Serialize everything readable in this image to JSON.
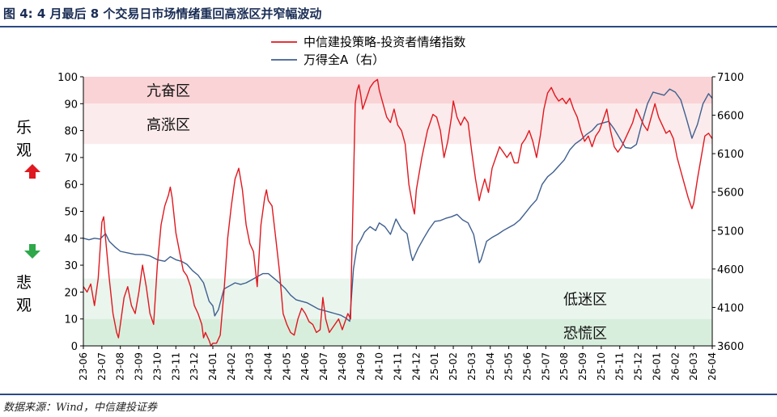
{
  "title": "图 4: 4 月最后 8 个交易日市场情绪重回高涨区并窄幅波动",
  "source": "数据来源：Wind，中信建投证券",
  "side_labels": {
    "upper": [
      "乐",
      "观"
    ],
    "lower": [
      "悲",
      "观"
    ]
  },
  "colors": {
    "sentiment": "#e0181f",
    "index": "#3e5f8f",
    "band_hot": "#f9d3d6",
    "band_high": "#fcebec",
    "band_low": "#eaf5ee",
    "band_panic": "#d8eedd",
    "up_arrow": "#e0181f",
    "down_arrow": "#2ea84a",
    "header": "#1a2d55"
  },
  "chart_data": {
    "type": "line",
    "title": "",
    "xlabel": "",
    "ylabel": "",
    "y_left": {
      "min": 0,
      "max": 100,
      "ticks": [
        0,
        10,
        20,
        30,
        40,
        50,
        60,
        70,
        80,
        90,
        100
      ]
    },
    "y_right": {
      "min": 3600,
      "max": 7100,
      "ticks": [
        3600,
        4100,
        4600,
        5100,
        5600,
        6100,
        6600,
        7100
      ]
    },
    "x_ticks": [
      "23-06",
      "23-07",
      "23-08",
      "23-09",
      "23-10",
      "23-11",
      "23-12",
      "24-01",
      "24-02",
      "24-03",
      "24-04",
      "24-05",
      "24-06",
      "24-07",
      "24-08",
      "24-09",
      "24-10",
      "24-11",
      "24-12",
      "25-01",
      "25-02",
      "25-03",
      "25-04",
      "25-05",
      "25-06",
      "25-07",
      "25-08",
      "25-09",
      "25-10",
      "25-11",
      "25-12",
      "26-01",
      "26-02",
      "26-03",
      "26-04"
    ],
    "bands": [
      {
        "label": "亢奋区",
        "from": 90,
        "to": 100,
        "color": "band_hot"
      },
      {
        "label": "高涨区",
        "from": 75,
        "to": 90,
        "color": "band_high"
      },
      {
        "label": "低迷区",
        "from": 10,
        "to": 25,
        "color": "band_low"
      },
      {
        "label": "恐慌区",
        "from": 0,
        "to": 10,
        "color": "band_panic"
      }
    ],
    "legend": {
      "position": "top-center"
    },
    "series": [
      {
        "name": "中信建投策略-投资者情绪指数",
        "axis": "left",
        "color": "sentiment",
        "points": [
          [
            0.0,
            22
          ],
          [
            0.2,
            20
          ],
          [
            0.4,
            23
          ],
          [
            0.6,
            15
          ],
          [
            0.8,
            25
          ],
          [
            1.0,
            46
          ],
          [
            1.1,
            48
          ],
          [
            1.2,
            40
          ],
          [
            1.4,
            25
          ],
          [
            1.6,
            12
          ],
          [
            1.8,
            5
          ],
          [
            1.9,
            3
          ],
          [
            2.0,
            8
          ],
          [
            2.2,
            18
          ],
          [
            2.4,
            22
          ],
          [
            2.6,
            15
          ],
          [
            2.8,
            12
          ],
          [
            3.0,
            20
          ],
          [
            3.2,
            30
          ],
          [
            3.4,
            22
          ],
          [
            3.6,
            12
          ],
          [
            3.8,
            8
          ],
          [
            4.0,
            30
          ],
          [
            4.2,
            45
          ],
          [
            4.4,
            52
          ],
          [
            4.6,
            56
          ],
          [
            4.7,
            59
          ],
          [
            4.8,
            55
          ],
          [
            5.0,
            42
          ],
          [
            5.2,
            35
          ],
          [
            5.4,
            28
          ],
          [
            5.6,
            26
          ],
          [
            5.8,
            22
          ],
          [
            6.0,
            15
          ],
          [
            6.2,
            12
          ],
          [
            6.4,
            8
          ],
          [
            6.5,
            3
          ],
          [
            6.6,
            5
          ],
          [
            6.8,
            2
          ],
          [
            6.9,
            0
          ],
          [
            7.0,
            1
          ],
          [
            7.2,
            1
          ],
          [
            7.4,
            4
          ],
          [
            7.6,
            20
          ],
          [
            7.8,
            40
          ],
          [
            8.0,
            52
          ],
          [
            8.2,
            62
          ],
          [
            8.4,
            66
          ],
          [
            8.6,
            58
          ],
          [
            8.8,
            45
          ],
          [
            9.0,
            38
          ],
          [
            9.2,
            35
          ],
          [
            9.4,
            22
          ],
          [
            9.6,
            45
          ],
          [
            9.8,
            55
          ],
          [
            9.9,
            58
          ],
          [
            10.0,
            54
          ],
          [
            10.2,
            52
          ],
          [
            10.4,
            40
          ],
          [
            10.6,
            28
          ],
          [
            10.8,
            12
          ],
          [
            11.0,
            8
          ],
          [
            11.2,
            5
          ],
          [
            11.4,
            4
          ],
          [
            11.6,
            10
          ],
          [
            11.8,
            14
          ],
          [
            12.0,
            12
          ],
          [
            12.2,
            9
          ],
          [
            12.4,
            8
          ],
          [
            12.6,
            5
          ],
          [
            12.8,
            6
          ],
          [
            12.95,
            18
          ],
          [
            13.1,
            10
          ],
          [
            13.3,
            5
          ],
          [
            13.6,
            8
          ],
          [
            13.8,
            10
          ],
          [
            14.0,
            6
          ],
          [
            14.3,
            12
          ],
          [
            14.45,
            10
          ],
          [
            14.5,
            30
          ],
          [
            14.6,
            60
          ],
          [
            14.7,
            90
          ],
          [
            14.8,
            95
          ],
          [
            14.9,
            97
          ],
          [
            15.0,
            93
          ],
          [
            15.1,
            88
          ],
          [
            15.3,
            92
          ],
          [
            15.5,
            96
          ],
          [
            15.7,
            98
          ],
          [
            15.9,
            99
          ],
          [
            16.0,
            95
          ],
          [
            16.2,
            90
          ],
          [
            16.4,
            85
          ],
          [
            16.6,
            83
          ],
          [
            16.8,
            88
          ],
          [
            17.0,
            82
          ],
          [
            17.2,
            80
          ],
          [
            17.4,
            75
          ],
          [
            17.6,
            60
          ],
          [
            17.8,
            52
          ],
          [
            17.9,
            49
          ],
          [
            18.0,
            58
          ],
          [
            18.3,
            70
          ],
          [
            18.6,
            80
          ],
          [
            18.9,
            86
          ],
          [
            19.1,
            85
          ],
          [
            19.3,
            80
          ],
          [
            19.5,
            70
          ],
          [
            19.7,
            76
          ],
          [
            19.9,
            85
          ],
          [
            20.0,
            91
          ],
          [
            20.2,
            85
          ],
          [
            20.4,
            82
          ],
          [
            20.6,
            85
          ],
          [
            20.8,
            83
          ],
          [
            21.0,
            72
          ],
          [
            21.2,
            62
          ],
          [
            21.4,
            54
          ],
          [
            21.5,
            57
          ],
          [
            21.7,
            62
          ],
          [
            21.9,
            57
          ],
          [
            22.1,
            66
          ],
          [
            22.3,
            70
          ],
          [
            22.5,
            74
          ],
          [
            22.7,
            72
          ],
          [
            22.9,
            70
          ],
          [
            23.1,
            72
          ],
          [
            23.3,
            68
          ],
          [
            23.5,
            68
          ],
          [
            23.7,
            75
          ],
          [
            23.9,
            77
          ],
          [
            24.1,
            80
          ],
          [
            24.3,
            76
          ],
          [
            24.5,
            70
          ],
          [
            24.7,
            78
          ],
          [
            24.9,
            88
          ],
          [
            25.1,
            94
          ],
          [
            25.3,
            96
          ],
          [
            25.5,
            93
          ],
          [
            25.7,
            91
          ],
          [
            25.9,
            92
          ],
          [
            26.1,
            90
          ],
          [
            26.3,
            92
          ],
          [
            26.5,
            88
          ],
          [
            26.7,
            85
          ],
          [
            26.9,
            80
          ],
          [
            27.1,
            76
          ],
          [
            27.3,
            78
          ],
          [
            27.5,
            74
          ],
          [
            27.7,
            78
          ],
          [
            27.9,
            80
          ],
          [
            28.1,
            84
          ],
          [
            28.3,
            88
          ],
          [
            28.5,
            80
          ],
          [
            28.7,
            74
          ],
          [
            28.9,
            72
          ],
          [
            29.1,
            74
          ],
          [
            29.3,
            77
          ],
          [
            29.5,
            80
          ],
          [
            29.7,
            83
          ],
          [
            29.9,
            88
          ],
          [
            30.1,
            85
          ],
          [
            30.3,
            82
          ],
          [
            30.5,
            80
          ],
          [
            30.7,
            85
          ],
          [
            30.9,
            90
          ],
          [
            31.1,
            85
          ],
          [
            31.3,
            82
          ],
          [
            31.5,
            79
          ],
          [
            31.7,
            80
          ],
          [
            31.9,
            77
          ],
          [
            32.1,
            70
          ],
          [
            32.3,
            65
          ],
          [
            32.5,
            60
          ],
          [
            32.7,
            55
          ],
          [
            32.9,
            51
          ],
          [
            33.0,
            53
          ],
          [
            33.2,
            62
          ],
          [
            33.4,
            70
          ],
          [
            33.6,
            78
          ],
          [
            33.8,
            79
          ],
          [
            34.0,
            77
          ]
        ]
      },
      {
        "name": "万得全A（右）",
        "axis": "right",
        "color": "index",
        "points": [
          [
            0.0,
            5000
          ],
          [
            0.3,
            4980
          ],
          [
            0.6,
            5000
          ],
          [
            0.9,
            4990
          ],
          [
            1.2,
            5060
          ],
          [
            1.4,
            4960
          ],
          [
            1.7,
            4890
          ],
          [
            2.0,
            4830
          ],
          [
            2.4,
            4810
          ],
          [
            2.8,
            4790
          ],
          [
            3.2,
            4790
          ],
          [
            3.6,
            4770
          ],
          [
            4.0,
            4720
          ],
          [
            4.4,
            4700
          ],
          [
            4.7,
            4760
          ],
          [
            5.0,
            4720
          ],
          [
            5.3,
            4700
          ],
          [
            5.6,
            4660
          ],
          [
            5.9,
            4580
          ],
          [
            6.2,
            4520
          ],
          [
            6.5,
            4420
          ],
          [
            6.8,
            4180
          ],
          [
            7.0,
            4120
          ],
          [
            7.1,
            3990
          ],
          [
            7.3,
            4070
          ],
          [
            7.6,
            4340
          ],
          [
            7.9,
            4380
          ],
          [
            8.2,
            4420
          ],
          [
            8.5,
            4400
          ],
          [
            8.8,
            4420
          ],
          [
            9.1,
            4460
          ],
          [
            9.4,
            4500
          ],
          [
            9.7,
            4540
          ],
          [
            10.0,
            4540
          ],
          [
            10.3,
            4480
          ],
          [
            10.6,
            4420
          ],
          [
            10.9,
            4350
          ],
          [
            11.2,
            4260
          ],
          [
            11.5,
            4200
          ],
          [
            11.8,
            4180
          ],
          [
            12.1,
            4160
          ],
          [
            12.4,
            4120
          ],
          [
            12.7,
            4080
          ],
          [
            13.0,
            4060
          ],
          [
            13.3,
            4040
          ],
          [
            13.6,
            4020
          ],
          [
            13.9,
            4000
          ],
          [
            14.2,
            3960
          ],
          [
            14.4,
            3920
          ],
          [
            14.6,
            4600
          ],
          [
            14.8,
            4900
          ],
          [
            15.0,
            4980
          ],
          [
            15.2,
            5080
          ],
          [
            15.5,
            5150
          ],
          [
            15.8,
            5100
          ],
          [
            16.0,
            5200
          ],
          [
            16.3,
            5150
          ],
          [
            16.6,
            5050
          ],
          [
            16.9,
            5250
          ],
          [
            17.2,
            5120
          ],
          [
            17.5,
            5060
          ],
          [
            17.7,
            4800
          ],
          [
            17.8,
            4710
          ],
          [
            18.1,
            4870
          ],
          [
            18.4,
            5000
          ],
          [
            18.7,
            5120
          ],
          [
            19.0,
            5220
          ],
          [
            19.3,
            5230
          ],
          [
            19.6,
            5260
          ],
          [
            19.9,
            5280
          ],
          [
            20.2,
            5310
          ],
          [
            20.5,
            5240
          ],
          [
            20.8,
            5200
          ],
          [
            21.1,
            5050
          ],
          [
            21.4,
            4680
          ],
          [
            21.5,
            4720
          ],
          [
            21.8,
            4960
          ],
          [
            22.1,
            5010
          ],
          [
            22.4,
            5050
          ],
          [
            22.7,
            5100
          ],
          [
            23.0,
            5140
          ],
          [
            23.3,
            5180
          ],
          [
            23.6,
            5240
          ],
          [
            23.9,
            5330
          ],
          [
            24.2,
            5420
          ],
          [
            24.5,
            5500
          ],
          [
            24.8,
            5700
          ],
          [
            25.1,
            5800
          ],
          [
            25.4,
            5860
          ],
          [
            25.7,
            5940
          ],
          [
            26.0,
            6020
          ],
          [
            26.3,
            6150
          ],
          [
            26.6,
            6230
          ],
          [
            26.9,
            6280
          ],
          [
            27.2,
            6350
          ],
          [
            27.5,
            6400
          ],
          [
            27.8,
            6480
          ],
          [
            28.1,
            6500
          ],
          [
            28.4,
            6520
          ],
          [
            28.7,
            6420
          ],
          [
            29.0,
            6300
          ],
          [
            29.3,
            6180
          ],
          [
            29.6,
            6170
          ],
          [
            29.9,
            6220
          ],
          [
            30.2,
            6500
          ],
          [
            30.5,
            6750
          ],
          [
            30.8,
            6900
          ],
          [
            31.1,
            6880
          ],
          [
            31.4,
            6860
          ],
          [
            31.7,
            6940
          ],
          [
            32.0,
            6900
          ],
          [
            32.3,
            6800
          ],
          [
            32.6,
            6560
          ],
          [
            32.9,
            6300
          ],
          [
            33.2,
            6480
          ],
          [
            33.5,
            6750
          ],
          [
            33.8,
            6880
          ],
          [
            34.0,
            6820
          ]
        ]
      }
    ]
  }
}
